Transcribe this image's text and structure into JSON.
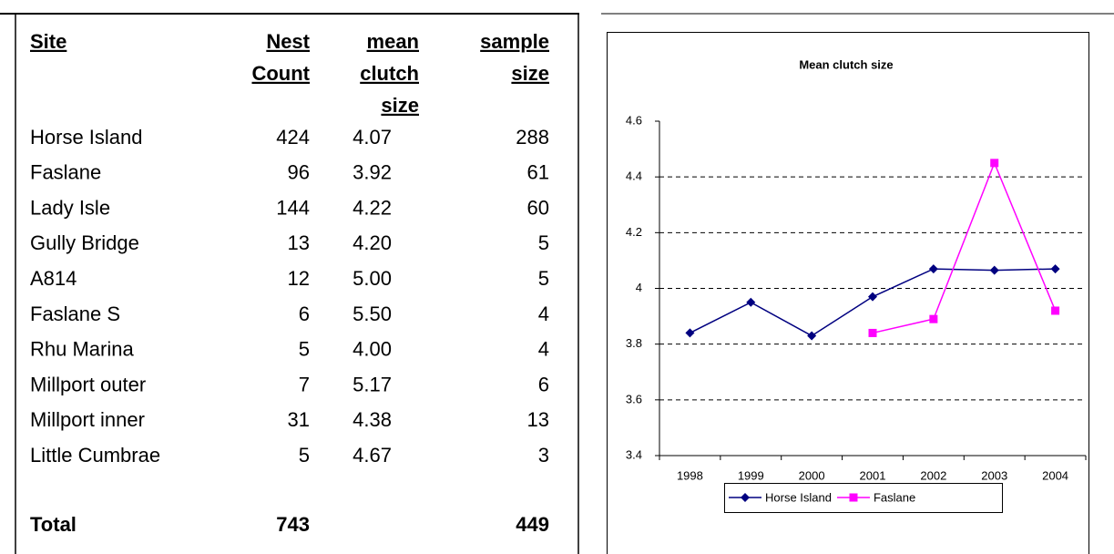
{
  "table": {
    "headers": [
      [
        "Site"
      ],
      [
        "Nest",
        "Count"
      ],
      [
        "mean",
        "clutch",
        "size"
      ],
      [
        "sample",
        "size"
      ]
    ],
    "rows": [
      [
        "Horse Island",
        "424",
        "4.07",
        "288"
      ],
      [
        "Faslane",
        "96",
        "3.92",
        "61"
      ],
      [
        "Lady Isle",
        "144",
        "4.22",
        "60"
      ],
      [
        "Gully Bridge",
        "13",
        "4.20",
        "5"
      ],
      [
        "A814",
        "12",
        "5.00",
        "5"
      ],
      [
        "Faslane S",
        "6",
        "5.50",
        "4"
      ],
      [
        "Rhu Marina",
        "5",
        "4.00",
        "4"
      ],
      [
        "Millport outer",
        "7",
        "5.17",
        "6"
      ],
      [
        "Millport inner",
        "31",
        "4.38",
        "13"
      ],
      [
        "Little Cumbrae",
        "5",
        "4.67",
        "3"
      ]
    ],
    "total": [
      "Total",
      "743",
      "449"
    ]
  },
  "chart_data": {
    "type": "line",
    "title": "Mean clutch size",
    "categories": [
      "1998",
      "1999",
      "2000",
      "2001",
      "2002",
      "2003",
      "2004"
    ],
    "series": [
      {
        "name": "Horse Island",
        "color": "#000080",
        "marker": "diamond",
        "values": [
          3.84,
          3.95,
          3.83,
          3.97,
          4.07,
          4.065,
          4.07
        ]
      },
      {
        "name": "Faslane",
        "color": "#ff00ff",
        "marker": "square",
        "values": [
          null,
          null,
          null,
          3.84,
          3.89,
          4.45,
          3.92
        ]
      }
    ],
    "ylim": [
      3.4,
      4.6
    ],
    "yticks": [
      3.4,
      3.6,
      3.8,
      4,
      4.2,
      4.4,
      4.6
    ],
    "grid": true,
    "legend": "bottom"
  }
}
